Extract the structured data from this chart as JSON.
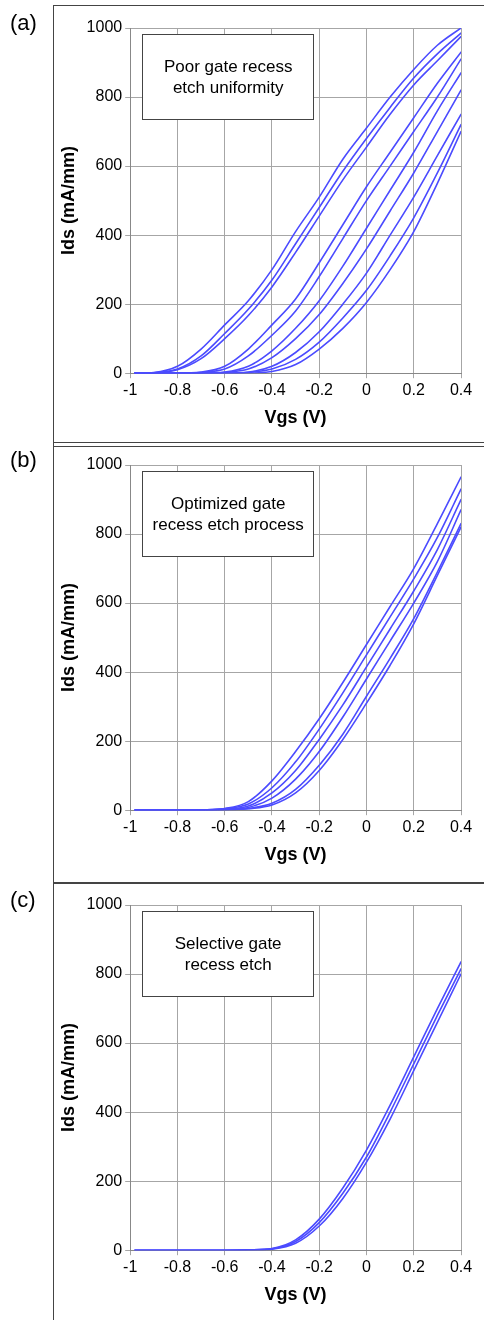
{
  "chart_data": [
    {
      "type": "line",
      "title": "(a)",
      "xlabel": "Vgs (V)",
      "ylabel": "Ids (mA/mm)",
      "annotations": [
        "Poor gate recess etch uniformity"
      ],
      "x": [
        -0.98,
        -0.9,
        -0.8,
        -0.7,
        -0.6,
        -0.5,
        -0.4,
        -0.3,
        -0.2,
        -0.1,
        0,
        0.1,
        0.2,
        0.3,
        0.4
      ],
      "xlim": [
        -1,
        0.4
      ],
      "xticks": [
        -1,
        -0.8,
        -0.6,
        -0.4,
        -0.2,
        0,
        0.2,
        0.4
      ],
      "ylim": [
        0,
        1000
      ],
      "yticks": [
        0,
        200,
        400,
        600,
        800,
        1000
      ],
      "grid": true,
      "marker": "none",
      "line_style": "solid",
      "series": [
        {
          "color": "#4b4bff",
          "values": [
            0,
            2,
            20,
            70,
            140,
            210,
            300,
            410,
            510,
            620,
            710,
            800,
            880,
            950,
            1000
          ]
        },
        {
          "color": "#4b4bff",
          "values": [
            0,
            1,
            12,
            50,
            115,
            185,
            270,
            375,
            480,
            585,
            680,
            770,
            855,
            925,
            985
          ]
        },
        {
          "color": "#4b4bff",
          "values": [
            0,
            1,
            10,
            42,
            100,
            167,
            250,
            350,
            455,
            560,
            655,
            750,
            835,
            905,
            975
          ]
        },
        {
          "color": "#4b4bff",
          "values": [
            0,
            0,
            0,
            3,
            20,
            70,
            140,
            215,
            320,
            430,
            540,
            640,
            740,
            840,
            930
          ]
        },
        {
          "color": "#4b4bff",
          "values": [
            0,
            0,
            0,
            2,
            12,
            50,
            110,
            180,
            280,
            390,
            500,
            600,
            700,
            800,
            910
          ]
        },
        {
          "color": "#4b4bff",
          "values": [
            0,
            0,
            0,
            0,
            3,
            20,
            65,
            130,
            210,
            310,
            420,
            530,
            640,
            760,
            870
          ]
        },
        {
          "color": "#4b4bff",
          "values": [
            0,
            0,
            0,
            0,
            2,
            12,
            45,
            100,
            170,
            260,
            360,
            470,
            580,
            700,
            820
          ]
        },
        {
          "color": "#4b4bff",
          "values": [
            0,
            0,
            0,
            0,
            0,
            3,
            20,
            60,
            120,
            200,
            290,
            400,
            510,
            630,
            750
          ]
        },
        {
          "color": "#4b4bff",
          "values": [
            0,
            0,
            0,
            0,
            0,
            2,
            12,
            40,
            90,
            160,
            240,
            340,
            450,
            580,
            720
          ]
        },
        {
          "color": "#4b4bff",
          "values": [
            0,
            0,
            0,
            0,
            0,
            0,
            5,
            25,
            70,
            130,
            205,
            300,
            410,
            550,
            700
          ]
        }
      ]
    },
    {
      "type": "line",
      "title": "(b)",
      "xlabel": "Vgs (V)",
      "ylabel": "Ids (mA/mm)",
      "annotations": [
        "Optimized gate recess etch process"
      ],
      "x": [
        -0.98,
        -0.9,
        -0.8,
        -0.7,
        -0.6,
        -0.5,
        -0.4,
        -0.3,
        -0.2,
        -0.1,
        0,
        0.1,
        0.2,
        0.3,
        0.4
      ],
      "xlim": [
        -1,
        0.4
      ],
      "xticks": [
        -1,
        -0.8,
        -0.6,
        -0.4,
        -0.2,
        0,
        0.2,
        0.4
      ],
      "ylim": [
        0,
        1000
      ],
      "yticks": [
        0,
        200,
        400,
        600,
        800,
        1000
      ],
      "grid": true,
      "marker": "none",
      "line_style": "solid",
      "series": [
        {
          "color": "#4b4bff",
          "values": [
            0,
            0,
            0,
            1,
            5,
            25,
            85,
            170,
            265,
            370,
            480,
            590,
            700,
            830,
            965
          ]
        },
        {
          "color": "#4b4bff",
          "values": [
            0,
            0,
            0,
            1,
            4,
            18,
            65,
            140,
            235,
            340,
            450,
            560,
            670,
            790,
            930
          ]
        },
        {
          "color": "#4b4bff",
          "values": [
            0,
            0,
            0,
            0,
            3,
            12,
            50,
            115,
            205,
            305,
            415,
            525,
            635,
            755,
            900
          ]
        },
        {
          "color": "#4b4bff",
          "values": [
            0,
            0,
            0,
            0,
            2,
            8,
            35,
            90,
            170,
            270,
            380,
            490,
            600,
            720,
            870
          ]
        },
        {
          "color": "#4b4bff",
          "values": [
            0,
            0,
            0,
            0,
            1,
            5,
            20,
            60,
            130,
            220,
            330,
            440,
            555,
            690,
            830
          ]
        },
        {
          "color": "#4b4bff",
          "values": [
            0,
            0,
            0,
            0,
            1,
            4,
            15,
            50,
            115,
            205,
            310,
            420,
            540,
            680,
            820
          ]
        }
      ]
    },
    {
      "type": "line",
      "title": "(c)",
      "xlabel": "Vgs (V)",
      "ylabel": "Ids (mA/mm)",
      "annotations": [
        "Selective gate recess etch"
      ],
      "x": [
        -0.98,
        -0.9,
        -0.8,
        -0.7,
        -0.6,
        -0.5,
        -0.4,
        -0.3,
        -0.2,
        -0.1,
        0,
        0.1,
        0.2,
        0.3,
        0.4
      ],
      "xlim": [
        -1,
        0.4
      ],
      "xticks": [
        -1,
        -0.8,
        -0.6,
        -0.4,
        -0.2,
        0,
        0.2,
        0.4
      ],
      "ylim": [
        0,
        1000
      ],
      "yticks": [
        0,
        200,
        400,
        600,
        800,
        1000
      ],
      "grid": true,
      "marker": "none",
      "line_style": "solid",
      "series": [
        {
          "color": "#4b4bff",
          "values": [
            0,
            0,
            0,
            0,
            0,
            1,
            5,
            30,
            90,
            180,
            290,
            420,
            560,
            700,
            835
          ]
        },
        {
          "color": "#4b4bff",
          "values": [
            0,
            0,
            0,
            0,
            0,
            1,
            4,
            25,
            80,
            165,
            270,
            400,
            540,
            680,
            815
          ]
        },
        {
          "color": "#4b4bff",
          "values": [
            0,
            0,
            0,
            0,
            0,
            0,
            3,
            20,
            70,
            150,
            255,
            380,
            520,
            660,
            800
          ]
        }
      ]
    }
  ]
}
